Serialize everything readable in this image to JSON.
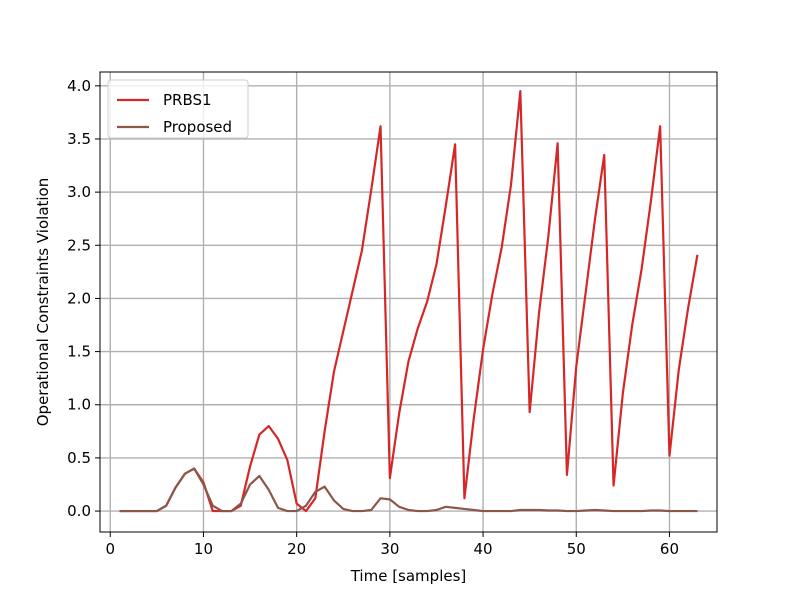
{
  "chart_data": {
    "type": "line",
    "title": "",
    "xlabel": "Time [samples]",
    "ylabel": "Operational Constraints Violation",
    "xlim": [
      -1.1,
      65.1
    ],
    "ylim": [
      -0.197,
      4.13
    ],
    "xticks": [
      0,
      10,
      20,
      30,
      40,
      50,
      60
    ],
    "xtick_labels": [
      "0",
      "10",
      "20",
      "30",
      "40",
      "50",
      "60"
    ],
    "yticks": [
      0.0,
      0.5,
      1.0,
      1.5,
      2.0,
      2.5,
      3.0,
      3.5,
      4.0
    ],
    "ytick_labels": [
      "0.0",
      "0.5",
      "1.0",
      "1.5",
      "2.0",
      "2.5",
      "3.0",
      "3.5",
      "4.0"
    ],
    "grid": true,
    "legend_position": "top-left",
    "series": [
      {
        "name": "PRBS1",
        "color": "#d62728",
        "x": [
          1,
          2,
          3,
          4,
          5,
          6,
          7,
          8,
          9,
          10,
          11,
          12,
          13,
          14,
          15,
          16,
          17,
          18,
          19,
          20,
          21,
          22,
          23,
          24,
          25,
          26,
          27,
          28,
          29,
          30,
          31,
          32,
          33,
          34,
          35,
          36,
          37,
          38,
          39,
          40,
          41,
          42,
          43,
          44,
          45,
          46,
          47,
          48,
          49,
          50,
          51,
          52,
          53,
          54,
          55,
          56,
          57,
          58,
          59,
          60,
          61,
          62,
          63
        ],
        "values": [
          0,
          0,
          0,
          0,
          0,
          0.05,
          0.22,
          0.35,
          0.4,
          0.27,
          0.0,
          0.0,
          0.0,
          0.05,
          0.42,
          0.72,
          0.8,
          0.68,
          0.48,
          0.07,
          0.0,
          0.12,
          0.75,
          1.31,
          1.69,
          2.07,
          2.45,
          3.02,
          3.62,
          0.31,
          0.92,
          1.41,
          1.72,
          1.97,
          2.32,
          2.87,
          3.45,
          0.12,
          0.87,
          1.52,
          2.04,
          2.48,
          3.07,
          3.95,
          0.93,
          1.86,
          2.58,
          3.46,
          0.34,
          1.36,
          2.05,
          2.74,
          3.35,
          0.24,
          1.11,
          1.75,
          2.27,
          2.91,
          3.62,
          0.52,
          1.33,
          1.91,
          2.41
        ]
      },
      {
        "name": "Proposed",
        "color": "#8c564b",
        "x": [
          1,
          2,
          3,
          4,
          5,
          6,
          7,
          8,
          9,
          10,
          11,
          12,
          13,
          14,
          15,
          16,
          17,
          18,
          19,
          20,
          21,
          22,
          23,
          24,
          25,
          26,
          27,
          28,
          29,
          30,
          31,
          32,
          33,
          34,
          35,
          36,
          37,
          38,
          39,
          40,
          41,
          42,
          43,
          44,
          45,
          46,
          47,
          48,
          49,
          50,
          51,
          52,
          53,
          54,
          55,
          56,
          57,
          58,
          59,
          60,
          61,
          62,
          63
        ],
        "values": [
          0,
          0,
          0,
          0,
          0,
          0.05,
          0.22,
          0.35,
          0.4,
          0.25,
          0.05,
          0.0,
          0.0,
          0.07,
          0.25,
          0.33,
          0.2,
          0.03,
          0.0,
          0.0,
          0.05,
          0.18,
          0.23,
          0.1,
          0.02,
          0.0,
          0.0,
          0.01,
          0.12,
          0.11,
          0.04,
          0.01,
          0.0,
          0.0,
          0.01,
          0.04,
          0.03,
          0.02,
          0.01,
          0.0,
          0.0,
          0.0,
          0.0,
          0.01,
          0.01,
          0.01,
          0.005,
          0.005,
          0.0,
          0.0,
          0.005,
          0.01,
          0.005,
          0.0,
          0.0,
          0.0,
          0.0,
          0.005,
          0.005,
          0.0,
          0.0,
          0.0,
          0.0
        ]
      }
    ]
  }
}
